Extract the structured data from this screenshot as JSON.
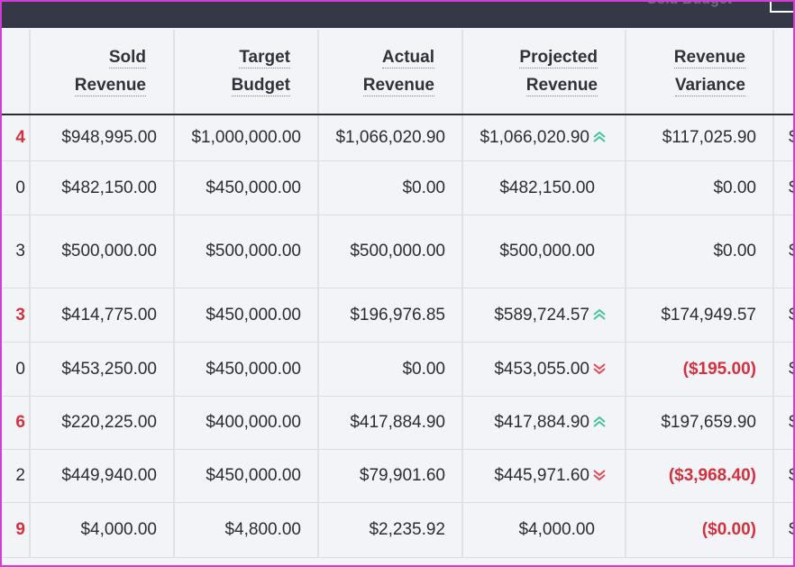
{
  "header": {
    "partial_text": "Sold Budget"
  },
  "columns": [
    {
      "line1": "Sold",
      "line2": "Revenue"
    },
    {
      "line1": "Target",
      "line2": "Budget"
    },
    {
      "line1": "Actual",
      "line2": "Revenue"
    },
    {
      "line1": "Projected",
      "line2": "Revenue"
    },
    {
      "line1": "Revenue",
      "line2": "Variance"
    }
  ],
  "rows": [
    {
      "edge": "4",
      "edge_red": true,
      "sold": "$948,995.00",
      "target": "$1,000,000.00",
      "actual": "$1,066,020.90",
      "projected": "$1,066,020.90",
      "trend": "up",
      "variance": "$117,025.90",
      "variance_red": false,
      "right": "$"
    },
    {
      "edge": "0",
      "edge_red": false,
      "sold": "$482,150.00",
      "target": "$450,000.00",
      "actual": "$0.00",
      "projected": "$482,150.00",
      "trend": "",
      "variance": "$0.00",
      "variance_red": false,
      "right": "$"
    },
    {
      "edge": "3",
      "edge_red": false,
      "sold": "$500,000.00",
      "target": "$500,000.00",
      "actual": "$500,000.00",
      "projected": "$500,000.00",
      "trend": "",
      "variance": "$0.00",
      "variance_red": false,
      "right": "$"
    },
    {
      "edge": "3",
      "edge_red": true,
      "sold": "$414,775.00",
      "target": "$450,000.00",
      "actual": "$196,976.85",
      "projected": "$589,724.57",
      "trend": "up",
      "variance": "$174,949.57",
      "variance_red": false,
      "right": "$"
    },
    {
      "edge": "0",
      "edge_red": false,
      "sold": "$453,250.00",
      "target": "$450,000.00",
      "actual": "$0.00",
      "projected": "$453,055.00",
      "trend": "down",
      "variance": "($195.00)",
      "variance_red": true,
      "right": "$"
    },
    {
      "edge": "6",
      "edge_red": true,
      "sold": "$220,225.00",
      "target": "$400,000.00",
      "actual": "$417,884.90",
      "projected": "$417,884.90",
      "trend": "up",
      "variance": "$197,659.90",
      "variance_red": false,
      "right": "$"
    },
    {
      "edge": "2",
      "edge_red": false,
      "sold": "$449,940.00",
      "target": "$450,000.00",
      "actual": "$79,901.60",
      "projected": "$445,971.60",
      "trend": "down",
      "variance": "($3,968.40)",
      "variance_red": true,
      "right": "$"
    },
    {
      "edge": "9",
      "edge_red": true,
      "sold": "$4,000.00",
      "target": "$4,800.00",
      "actual": "$2,235.92",
      "projected": "$4,000.00",
      "trend": "",
      "variance": "($0.00)",
      "variance_red": true,
      "right": "$"
    }
  ],
  "colors": {
    "topbar": "#353847",
    "up_arrow": "#43c49a",
    "down_arrow": "#e04b55",
    "negative_text": "#d3313d"
  }
}
